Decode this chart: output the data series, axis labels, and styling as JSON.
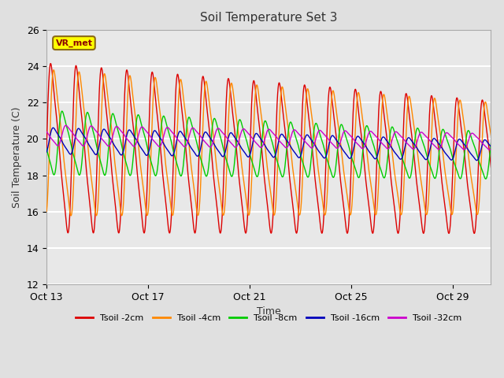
{
  "title": "Soil Temperature Set 3",
  "xlabel": "Time",
  "ylabel": "Soil Temperature (C)",
  "ylim": [
    12,
    26
  ],
  "yticks": [
    12,
    14,
    16,
    18,
    20,
    22,
    24,
    26
  ],
  "xtick_labels": [
    "Oct 13",
    "Oct 17",
    "Oct 21",
    "Oct 25",
    "Oct 29"
  ],
  "xtick_positions": [
    0,
    4,
    8,
    12,
    16
  ],
  "xlim": [
    0,
    17.5
  ],
  "bg_color": "#e0e0e0",
  "plot_bg_color": "#e8e8e8",
  "grid_color": "#ffffff",
  "annotation_text": "VR_met",
  "annotation_bg": "#ffff00",
  "annotation_border": "#8b6914",
  "legend_entries": [
    {
      "label": "Tsoil -2cm",
      "color": "#dd0000"
    },
    {
      "label": "Tsoil -4cm",
      "color": "#ff8800"
    },
    {
      "label": "Tsoil -8cm",
      "color": "#00cc00"
    },
    {
      "label": "Tsoil -16cm",
      "color": "#0000bb"
    },
    {
      "label": "Tsoil -32cm",
      "color": "#cc00cc"
    }
  ],
  "series": [
    {
      "color": "#dd0000",
      "base_temp": 19.5,
      "amplitude_start": 5.8,
      "amplitude_end": 4.5,
      "phase_lag": 0.0,
      "sharpness": 3.0,
      "trend": -0.06
    },
    {
      "color": "#ff8800",
      "base_temp": 19.8,
      "amplitude_start": 5.0,
      "amplitude_end": 3.8,
      "phase_lag": 0.12,
      "sharpness": 2.5,
      "trend": -0.05
    },
    {
      "color": "#00cc00",
      "base_temp": 19.8,
      "amplitude_start": 2.2,
      "amplitude_end": 1.6,
      "phase_lag": 0.45,
      "sharpness": 1.5,
      "trend": -0.04
    },
    {
      "color": "#0000bb",
      "base_temp": 19.9,
      "amplitude_start": 0.9,
      "amplitude_end": 0.7,
      "phase_lag": 1.1,
      "sharpness": 1.0,
      "trend": -0.03
    },
    {
      "color": "#cc00cc",
      "base_temp": 20.2,
      "amplitude_start": 0.7,
      "amplitude_end": 0.55,
      "phase_lag": 1.6,
      "sharpness": 1.0,
      "trend": -0.02
    }
  ],
  "n_points": 3000,
  "total_days": 18.0,
  "period_days": 1.0
}
